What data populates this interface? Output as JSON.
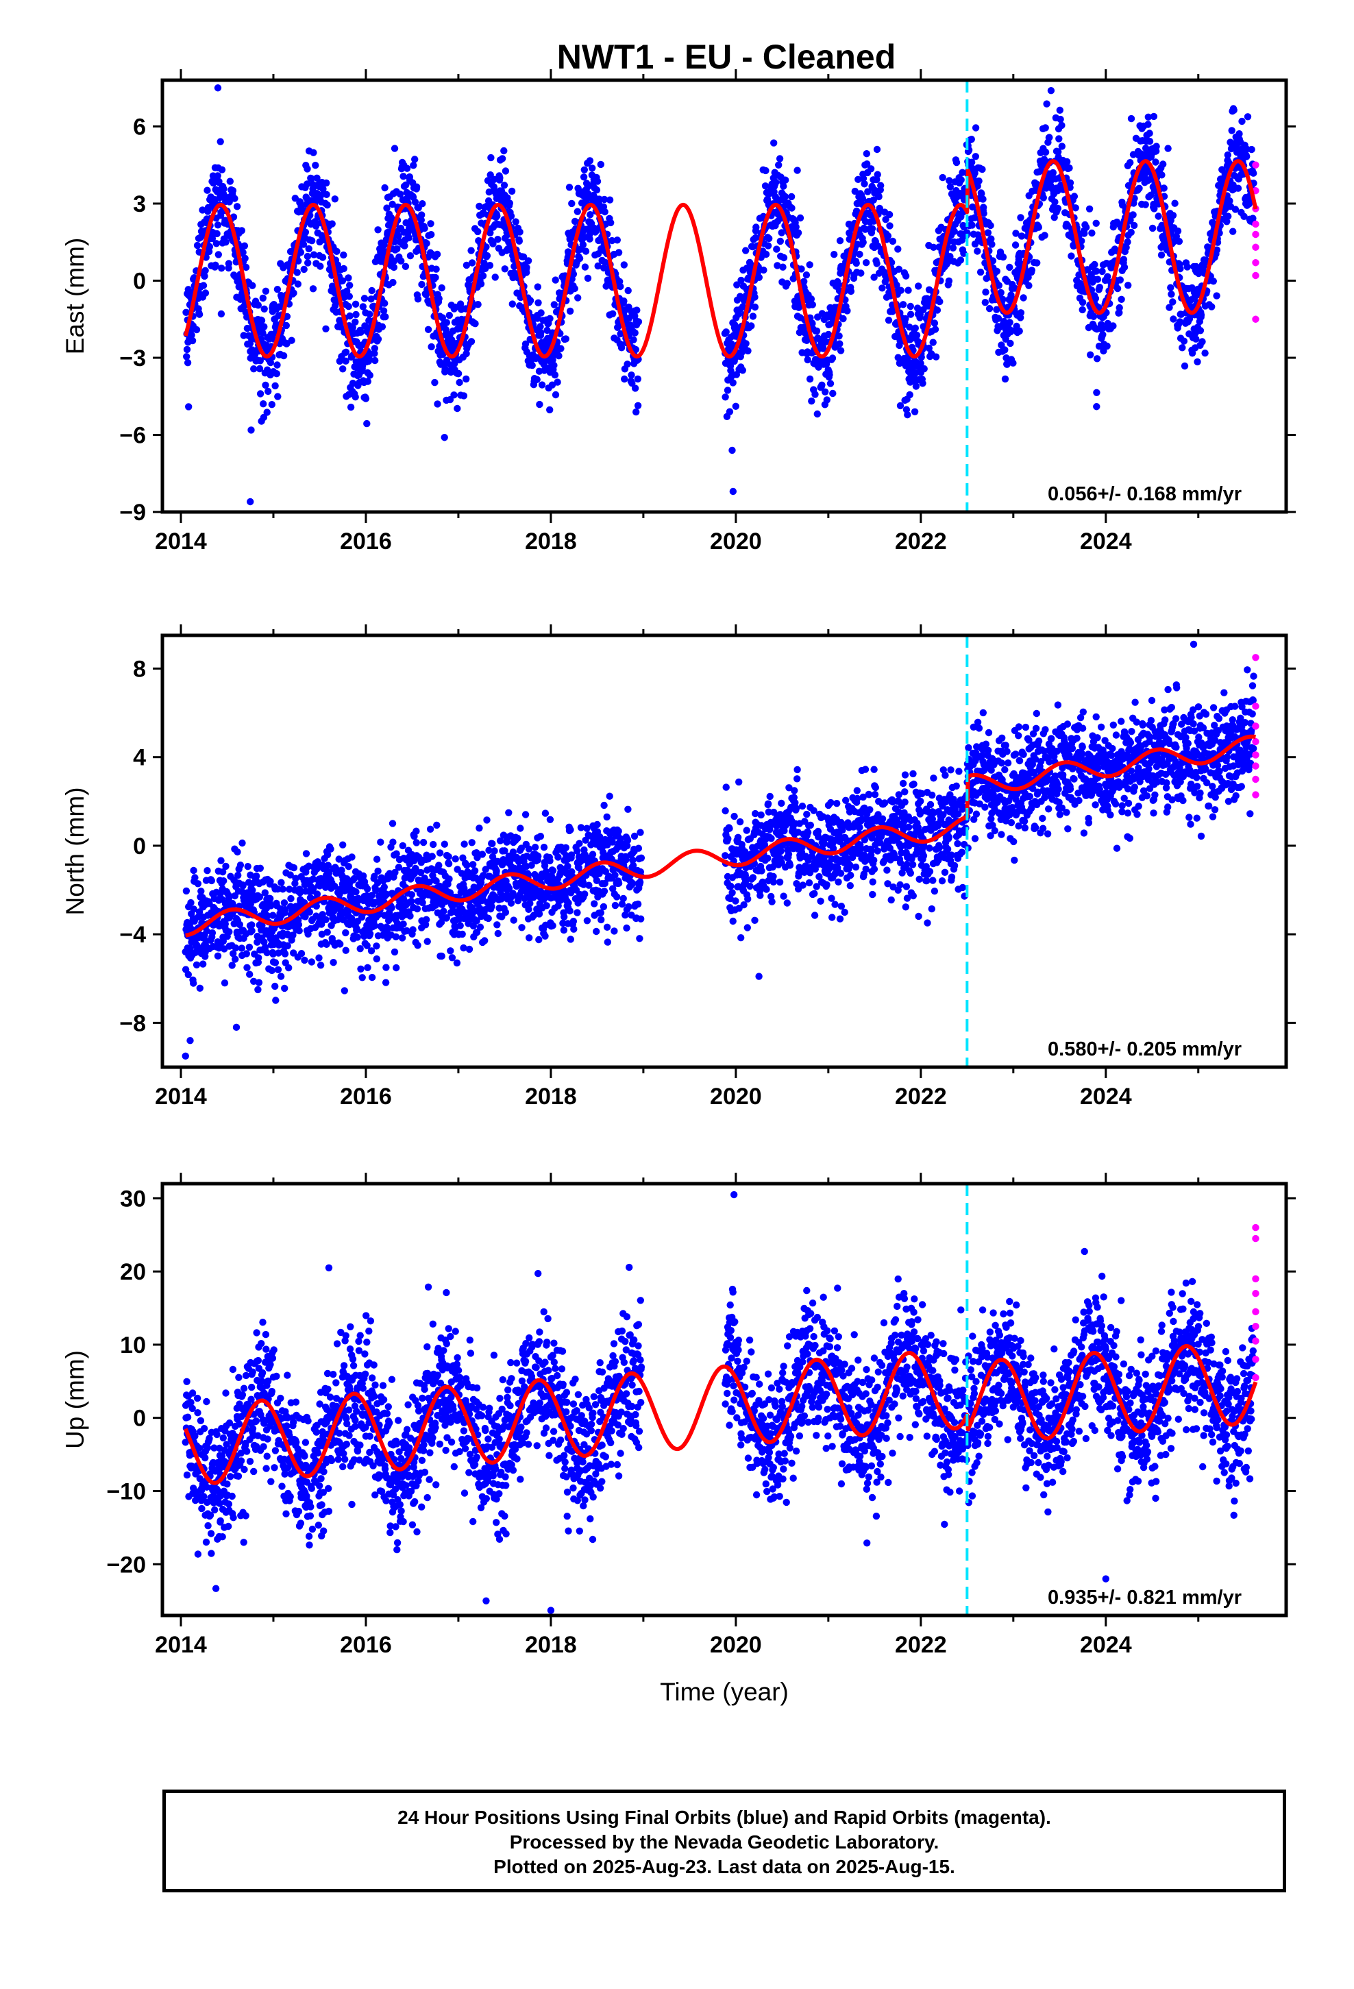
{
  "title": "NWT1  - EU - Cleaned",
  "footer": {
    "line1": "24 Hour Positions Using Final Orbits (blue) and Rapid Orbits (magenta).",
    "line2": "Processed by the Nevada Geodetic Laboratory.",
    "line3": "Plotted on 2025-Aug-23. Last data on 2025-Aug-15."
  },
  "colors": {
    "final_points": "#0000ff",
    "rapid_points": "#ff00ff",
    "model_line": "#ff0000",
    "event_line": "#00e5ff",
    "frame": "#000000"
  },
  "chart_data": [
    {
      "type": "scatter",
      "ylabel": "East (mm)",
      "xlabel": "",
      "xlim": [
        2013.8,
        2025.95
      ],
      "ylim": [
        -9,
        7.8
      ],
      "yticks": [
        -9,
        -6,
        -3,
        0,
        3,
        6
      ],
      "xticks": [
        2014,
        2016,
        2018,
        2020,
        2022,
        2024
      ],
      "rate": "0.056+/- 0.168 mm/yr",
      "event_line_x": 2022.5,
      "model": {
        "segments": [
          {
            "from": 2014.05,
            "to": 2022.5,
            "offset": 0.0,
            "amp": 2.95,
            "phase": 0.18,
            "trend": 0.0
          },
          {
            "from": 2022.5,
            "to": 2025.62,
            "offset": 1.7,
            "amp": 2.95,
            "phase": 0.18,
            "trend": 0.0
          }
        ]
      },
      "scatter_profile": {
        "gaps": [
          [
            2018.95,
            2019.88
          ]
        ],
        "noise": 1.05,
        "outliers": [
          [
            2014.75,
            -8.6
          ],
          [
            2019.97,
            -8.2
          ],
          [
            2019.96,
            -6.6
          ],
          [
            2016.85,
            -6.1
          ],
          [
            2023.9,
            -4.9
          ],
          [
            2014.4,
            7.5
          ]
        ]
      },
      "rapid_points": {
        "x": 2025.62,
        "y": [
          4.5,
          3.5,
          2.8,
          2.2,
          1.8,
          1.3,
          0.7,
          0.2,
          -1.5
        ]
      }
    },
    {
      "type": "scatter",
      "ylabel": "North (mm)",
      "xlabel": "",
      "xlim": [
        2013.8,
        2025.95
      ],
      "ylim": [
        -10,
        9.5
      ],
      "yticks": [
        -8,
        -4,
        0,
        4,
        8
      ],
      "xticks": [
        2014,
        2016,
        2018,
        2020,
        2022,
        2024
      ],
      "rate": "0.580+/- 0.205 mm/yr",
      "event_line_x": 2022.5,
      "model": {
        "segments": [
          {
            "from": 2014.05,
            "to": 2022.5,
            "offset": -3.6,
            "amp": 0.45,
            "phase": 0.3,
            "trend": 0.53
          },
          {
            "from": 2022.5,
            "to": 2025.62,
            "offset": 2.7,
            "amp": 0.45,
            "phase": 0.3,
            "trend": 0.58
          }
        ]
      },
      "scatter_profile": {
        "gaps": [
          [
            2018.98,
            2019.88
          ]
        ],
        "noise": 1.15,
        "outliers": [
          [
            2014.05,
            -9.5
          ],
          [
            2014.1,
            -8.8
          ],
          [
            2020.25,
            -5.9
          ],
          [
            2024.95,
            9.1
          ],
          [
            2014.6,
            -8.2
          ]
        ]
      },
      "rapid_points": {
        "x": 2025.62,
        "y": [
          8.5,
          6.3,
          5.4,
          4.7,
          4.1,
          3.6,
          3.0,
          2.3
        ]
      }
    },
    {
      "type": "scatter",
      "ylabel": "Up (mm)",
      "xlabel": "Time (year)",
      "xlim": [
        2013.8,
        2025.95
      ],
      "ylim": [
        -27,
        32
      ],
      "yticks": [
        -20,
        -10,
        0,
        10,
        20,
        30
      ],
      "xticks": [
        2014,
        2016,
        2018,
        2020,
        2022,
        2024
      ],
      "rate": "0.935+/- 0.821 mm/yr",
      "event_line_x": 2022.5,
      "model": {
        "segments": [
          {
            "from": 2014.05,
            "to": 2022.5,
            "offset": -3.8,
            "amp": 5.4,
            "phase": 0.62,
            "trend": 0.93
          },
          {
            "from": 2022.5,
            "to": 2025.62,
            "offset": 2.0,
            "amp": 5.6,
            "phase": 0.62,
            "trend": 0.93
          }
        ]
      },
      "scatter_profile": {
        "gaps": [
          [
            2018.98,
            2019.88
          ]
        ],
        "noise": 4.6,
        "outliers": [
          [
            2019.98,
            30.5
          ],
          [
            2015.6,
            20.5
          ],
          [
            2017.3,
            -25.0
          ],
          [
            2018.0,
            -26.3
          ],
          [
            2024.0,
            -22.0
          ]
        ]
      },
      "rapid_points": {
        "x": 2025.62,
        "y": [
          26.0,
          24.5,
          19.0,
          17.0,
          14.5,
          12.5,
          10.5,
          8.0,
          5.5
        ]
      }
    }
  ]
}
